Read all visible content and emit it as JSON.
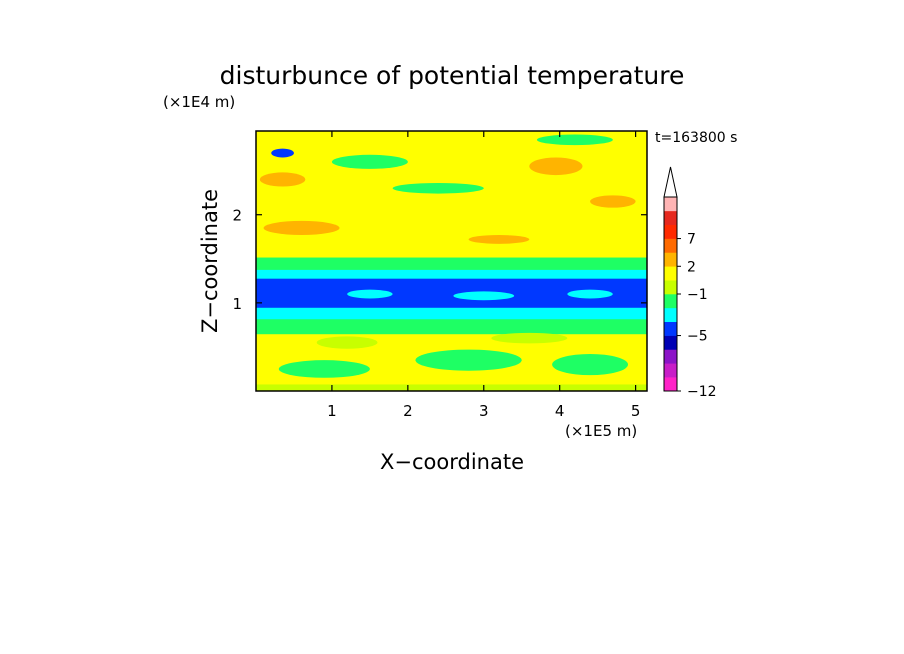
{
  "chart_data": {
    "type": "heatmap",
    "title": "disturbunce of potential temperature",
    "xlabel": "X−coordinate",
    "ylabel": "Z−coordinate",
    "x_unit": "(×1E5 m)",
    "y_unit": "(×1E4 m)",
    "time_label": "t=163800 s",
    "xlim": [
      0,
      5.15
    ],
    "ylim": [
      0,
      2.95
    ],
    "x_ticks": [
      1,
      2,
      3,
      4,
      5
    ],
    "y_ticks": [
      1,
      2
    ],
    "x_tick_labels": [
      "1",
      "2",
      "3",
      "4",
      "5"
    ],
    "y_tick_labels": [
      "1",
      "2"
    ],
    "colorbar": {
      "colors": [
        "#ff22c8",
        "#c81ec8",
        "#8c14c8",
        "#0000b4",
        "#0038ff",
        "#00ffff",
        "#1eff64",
        "#c8ff00",
        "#ffff00",
        "#ffb400",
        "#ff6a00",
        "#ff2a00",
        "#e6281e",
        "#ffb4b4",
        "#ffffff"
      ],
      "tick_labels": [
        "7",
        "2",
        "−1",
        "−5",
        "−12"
      ]
    },
    "field_bands": [
      {
        "z": [
          0.0,
          0.08
        ],
        "color": "#c8ff00"
      },
      {
        "z": [
          0.08,
          0.65
        ],
        "color": "#ffff00"
      },
      {
        "z": [
          0.65,
          0.82
        ],
        "color": "#1eff64"
      },
      {
        "z": [
          0.82,
          0.95
        ],
        "color": "#00ffff"
      },
      {
        "z": [
          0.95,
          1.28
        ],
        "color": "#0038ff"
      },
      {
        "z": [
          1.28,
          1.38
        ],
        "color": "#00ffff"
      },
      {
        "z": [
          1.38,
          1.52
        ],
        "color": "#1eff64"
      },
      {
        "z": [
          1.52,
          2.95
        ],
        "color": "#ffff00"
      }
    ],
    "field_features": [
      {
        "x": 0.35,
        "z": 2.4,
        "rx": 0.3,
        "rz": 0.08,
        "color": "#ffb400"
      },
      {
        "x": 0.6,
        "z": 1.85,
        "rx": 0.5,
        "rz": 0.08,
        "color": "#ffb400"
      },
      {
        "x": 3.95,
        "z": 2.55,
        "rx": 0.35,
        "rz": 0.1,
        "color": "#ffb400"
      },
      {
        "x": 4.7,
        "z": 2.15,
        "rx": 0.3,
        "rz": 0.07,
        "color": "#ffb400"
      },
      {
        "x": 3.2,
        "z": 1.72,
        "rx": 0.4,
        "rz": 0.05,
        "color": "#ffb400"
      },
      {
        "x": 0.35,
        "z": 2.7,
        "rx": 0.15,
        "rz": 0.05,
        "color": "#0038ff"
      },
      {
        "x": 1.5,
        "z": 2.6,
        "rx": 0.5,
        "rz": 0.08,
        "color": "#1eff64"
      },
      {
        "x": 2.4,
        "z": 2.3,
        "rx": 0.6,
        "rz": 0.06,
        "color": "#1eff64"
      },
      {
        "x": 4.2,
        "z": 2.85,
        "rx": 0.5,
        "rz": 0.06,
        "color": "#1eff64"
      },
      {
        "x": 1.5,
        "z": 1.1,
        "rx": 0.3,
        "rz": 0.05,
        "color": "#00ffff"
      },
      {
        "x": 3.0,
        "z": 1.08,
        "rx": 0.4,
        "rz": 0.05,
        "color": "#00ffff"
      },
      {
        "x": 4.4,
        "z": 1.1,
        "rx": 0.3,
        "rz": 0.05,
        "color": "#00ffff"
      },
      {
        "x": 0.9,
        "z": 0.25,
        "rx": 0.6,
        "rz": 0.1,
        "color": "#1eff64"
      },
      {
        "x": 2.8,
        "z": 0.35,
        "rx": 0.7,
        "rz": 0.12,
        "color": "#1eff64"
      },
      {
        "x": 4.4,
        "z": 0.3,
        "rx": 0.5,
        "rz": 0.12,
        "color": "#1eff64"
      },
      {
        "x": 1.2,
        "z": 0.55,
        "rx": 0.4,
        "rz": 0.07,
        "color": "#c8ff00"
      },
      {
        "x": 3.6,
        "z": 0.6,
        "rx": 0.5,
        "rz": 0.06,
        "color": "#c8ff00"
      }
    ]
  }
}
